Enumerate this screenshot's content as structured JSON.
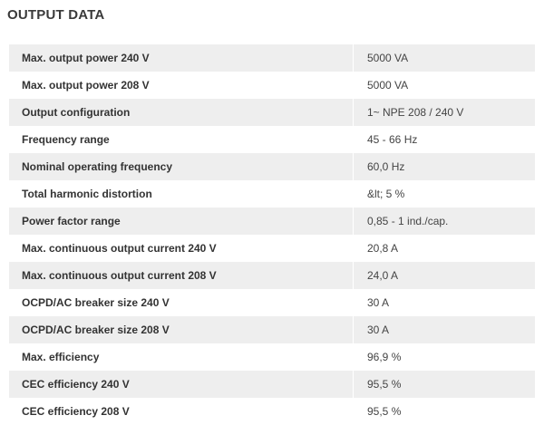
{
  "section": {
    "title": "OUTPUT DATA"
  },
  "rows": [
    {
      "label": "Max. output power 240 V",
      "value": "5000 VA"
    },
    {
      "label": "Max. output power 208 V",
      "value": "5000 VA"
    },
    {
      "label": "Output configuration",
      "value": "1~ NPE 208 / 240 V"
    },
    {
      "label": "Frequency range",
      "value": "45 - 66 Hz"
    },
    {
      "label": "Nominal operating frequency",
      "value": "60,0 Hz"
    },
    {
      "label": "Total harmonic distortion",
      "value": "&lt; 5 %"
    },
    {
      "label": "Power factor range",
      "value": "0,85 - 1 ind./cap."
    },
    {
      "label": "Max. continuous output current 240 V",
      "value": "20,8 A"
    },
    {
      "label": "Max. continuous output current 208 V",
      "value": "24,0 A"
    },
    {
      "label": "OCPD/AC breaker size 240 V",
      "value": "30 A"
    },
    {
      "label": "OCPD/AC breaker size 208 V",
      "value": "30 A"
    },
    {
      "label": "Max. efficiency",
      "value": "96,9 %"
    },
    {
      "label": "CEC efficiency 240 V",
      "value": "95,5 %"
    },
    {
      "label": "CEC efficiency 208 V",
      "value": "95,5 %"
    }
  ]
}
